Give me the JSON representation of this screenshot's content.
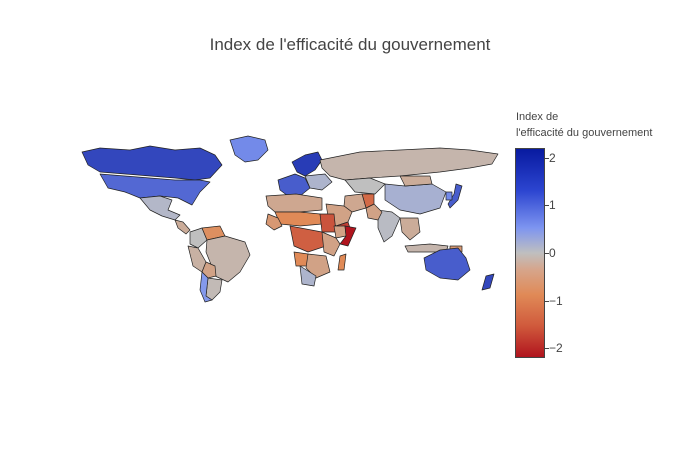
{
  "title": "Index de l'efficacité du gouvernement",
  "colorbar": {
    "title_line1": "Index de",
    "title_line2": "l'efficacité du gouvernement",
    "ticks": [
      "2",
      "1",
      "0",
      "−1",
      "−2"
    ]
  },
  "colors": {
    "very_high": "#1b2cc1",
    "high": "#3a56d4",
    "mid_high": "#6d8bea",
    "neutral": "#b9bdc8",
    "mid_low": "#c9ad98",
    "low": "#e09a68",
    "very_low": "#cc4a30",
    "extreme_low": "#b3181f"
  },
  "chart_data": {
    "type": "choropleth",
    "title": "Index de l'efficacité du gouvernement",
    "colorbar_title": "Index de l'efficacité du gouvernement",
    "colorscale": [
      "#b0141e",
      "#e08a57",
      "#bfbfbf",
      "#7e95f0",
      "#081aa0"
    ],
    "zrange": [
      -2.2,
      2.2
    ],
    "regions": [
      {
        "name": "Canada",
        "value": 1.8
      },
      {
        "name": "United States",
        "value": 1.5
      },
      {
        "name": "Greenland",
        "value": 1.2
      },
      {
        "name": "Mexico",
        "value": 0.2
      },
      {
        "name": "Central America",
        "value": -0.4
      },
      {
        "name": "Colombia",
        "value": 0.0
      },
      {
        "name": "Venezuela",
        "value": -1.0
      },
      {
        "name": "Brazil",
        "value": -0.2
      },
      {
        "name": "Peru",
        "value": -0.3
      },
      {
        "name": "Bolivia",
        "value": -0.6
      },
      {
        "name": "Argentina",
        "value": -0.1
      },
      {
        "name": "Chile",
        "value": 1.0
      },
      {
        "name": "Scandinavia",
        "value": 1.9
      },
      {
        "name": "Western Europe",
        "value": 1.6
      },
      {
        "name": "Eastern Europe",
        "value": 0.3
      },
      {
        "name": "Russia",
        "value": -0.2
      },
      {
        "name": "Kazakhstan",
        "value": 0.0
      },
      {
        "name": "China",
        "value": 0.4
      },
      {
        "name": "Mongolia",
        "value": -0.4
      },
      {
        "name": "Japan",
        "value": 1.6
      },
      {
        "name": "South Korea",
        "value": 1.2
      },
      {
        "name": "India",
        "value": 0.1
      },
      {
        "name": "Pakistan",
        "value": -0.6
      },
      {
        "name": "Afghanistan",
        "value": -1.4
      },
      {
        "name": "Iran",
        "value": -0.5
      },
      {
        "name": "Arabian Peninsula",
        "value": -0.6
      },
      {
        "name": "Yemen",
        "value": -1.8
      },
      {
        "name": "Southeast Asia",
        "value": -0.4
      },
      {
        "name": "Indonesia",
        "value": -0.2
      },
      {
        "name": "Papua New Guinea",
        "value": -0.8
      },
      {
        "name": "North Africa",
        "value": -0.5
      },
      {
        "name": "Sahel",
        "value": -1.1
      },
      {
        "name": "West Africa",
        "value": -0.8
      },
      {
        "name": "Sudan",
        "value": -1.6
      },
      {
        "name": "Ethiopia",
        "value": -0.6
      },
      {
        "name": "Somalia",
        "value": -2.2
      },
      {
        "name": "Central Africa",
        "value": -1.5
      },
      {
        "name": "East Africa",
        "value": -0.6
      },
      {
        "name": "Angola",
        "value": -1.1
      },
      {
        "name": "Southern Africa",
        "value": -0.6
      },
      {
        "name": "South Africa",
        "value": 0.3
      },
      {
        "name": "Madagascar",
        "value": -1.1
      },
      {
        "name": "Australia",
        "value": 1.6
      },
      {
        "name": "New Zealand",
        "value": 1.8
      }
    ]
  }
}
